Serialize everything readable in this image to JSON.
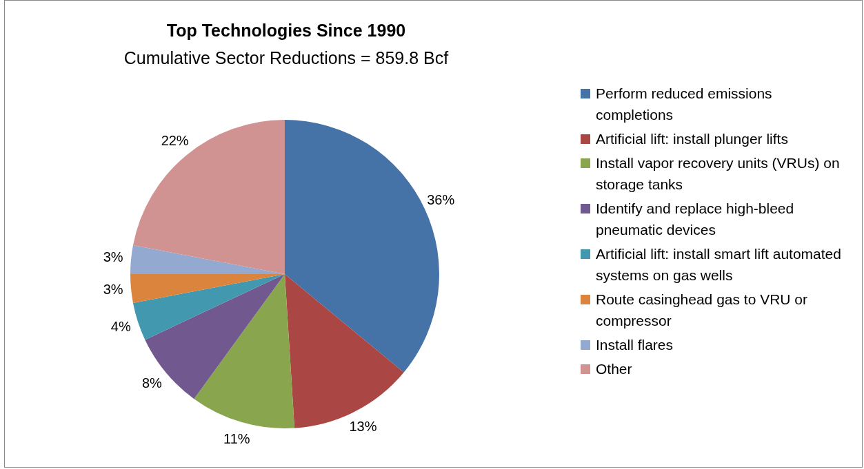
{
  "chart_data": {
    "type": "pie",
    "title": "Top Technologies Since 1990",
    "subtitle": "Cumulative Sector Reductions = 859.8 Bcf",
    "categories": [
      "Perform reduced emissions completions",
      "Artificial lift: install plunger lifts",
      "Install vapor recovery units (VRUs) on storage tanks",
      "Identify and replace high-bleed pneumatic devices",
      "Artificial lift: install smart lift automated systems on gas wells",
      "Route casinghead gas to VRU or compressor",
      "Install flares",
      "Other"
    ],
    "values": [
      36,
      13,
      11,
      8,
      4,
      3,
      3,
      22
    ],
    "colors": [
      "#4572a7",
      "#aa4643",
      "#89a54e",
      "#71588f",
      "#4198af",
      "#db843d",
      "#93a9cf",
      "#d19392"
    ],
    "value_labels": [
      "36%",
      "13%",
      "11%",
      "8%",
      "4%",
      "3%",
      "3%",
      "22%"
    ],
    "legend": "right"
  }
}
